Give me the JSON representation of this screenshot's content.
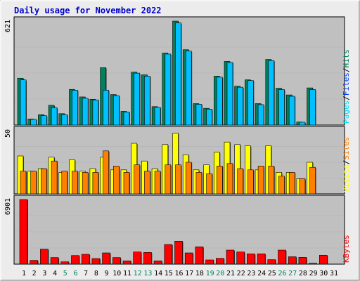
{
  "title": "Daily usage for November 2022",
  "colors": {
    "background": "#ececec",
    "plot_background": "#c0c0c0",
    "title": "#0000cc",
    "label": "#000000",
    "weekend_label": "#00805c",
    "hits": "#00805c",
    "files": "#00c0ff",
    "pages": "#00e0ff",
    "visits": "#ffff00",
    "sites": "#ff8000",
    "kbytes": "#ff0000"
  },
  "chart_data": [
    {
      "type": "bar",
      "title": "Daily usage for November 2022",
      "panel": "pages-files-hits",
      "ymax_label": "621",
      "ylim": [
        0,
        621
      ],
      "legend": [
        {
          "text": "Pages",
          "color": "#00e0ff"
        },
        {
          "text": "/",
          "color": "#000000"
        },
        {
          "text": "Files",
          "color": "#0040ff"
        },
        {
          "text": "/",
          "color": "#000000"
        },
        {
          "text": "Hits",
          "color": "#00805c"
        }
      ],
      "categories": [
        "1",
        "2",
        "3",
        "4",
        "5",
        "6",
        "7",
        "8",
        "9",
        "10",
        "11",
        "12",
        "13",
        "14",
        "15",
        "16",
        "17",
        "18",
        "19",
        "20",
        "21",
        "22",
        "23",
        "24",
        "25",
        "26",
        "27",
        "28",
        "29",
        "30",
        "31"
      ],
      "series": [
        {
          "name": "Hits",
          "values": [
            280,
            36,
            62,
            118,
            68,
            213,
            168,
            154,
            343,
            182,
            82,
            316,
            300,
            110,
            430,
            621,
            450,
            128,
            100,
            292,
            380,
            232,
            270,
            128,
            392,
            220,
            180,
            18,
            222,
            0,
            0
          ]
        },
        {
          "name": "Files",
          "values": [
            270,
            34,
            56,
            104,
            62,
            208,
            160,
            150,
            208,
            176,
            78,
            310,
            292,
            106,
            424,
            610,
            442,
            124,
            95,
            286,
            374,
            226,
            266,
            122,
            385,
            212,
            172,
            17,
            212,
            0,
            0
          ]
        },
        {
          "name": "Pages",
          "values": [
            270,
            34,
            56,
            104,
            62,
            208,
            160,
            150,
            208,
            176,
            78,
            310,
            292,
            106,
            424,
            610,
            442,
            124,
            95,
            286,
            374,
            226,
            266,
            122,
            385,
            212,
            172,
            17,
            212,
            0,
            0
          ]
        }
      ]
    },
    {
      "type": "bar",
      "panel": "visits-sites",
      "ymax_label": "50",
      "ylim": [
        0,
        50
      ],
      "legend": [
        {
          "text": "Visits",
          "color": "#ffff00"
        },
        {
          "text": "/",
          "color": "#000000"
        },
        {
          "text": "Sites",
          "color": "#ff8000"
        }
      ],
      "categories": [
        "1",
        "2",
        "3",
        "4",
        "5",
        "6",
        "7",
        "8",
        "9",
        "10",
        "11",
        "12",
        "13",
        "14",
        "15",
        "16",
        "17",
        "18",
        "19",
        "20",
        "21",
        "22",
        "23",
        "24",
        "25",
        "26",
        "27",
        "28",
        "29",
        "30",
        "31"
      ],
      "series": [
        {
          "name": "Visits",
          "values": [
            30,
            18,
            20,
            29,
            17,
            27,
            18,
            20,
            29,
            19,
            19,
            40,
            26,
            20,
            39,
            48,
            31,
            19,
            23,
            33,
            41,
            39,
            38,
            19,
            38,
            17,
            17,
            12,
            25,
            0,
            0
          ]
        },
        {
          "name": "Sites",
          "values": [
            18,
            18,
            20,
            26,
            18,
            18,
            17,
            17,
            34,
            22,
            17,
            23,
            18,
            18,
            23,
            23,
            25,
            17,
            16,
            22,
            24,
            20,
            19,
            22,
            22,
            14,
            17,
            12,
            21,
            0,
            0
          ]
        }
      ]
    },
    {
      "type": "bar",
      "panel": "kbytes",
      "ymax_label": "6901",
      "ylim": [
        0,
        6901
      ],
      "legend": [
        {
          "text": "KBytes",
          "color": "#ff0000"
        }
      ],
      "categories": [
        "1",
        "2",
        "3",
        "4",
        "5",
        "6",
        "7",
        "8",
        "9",
        "10",
        "11",
        "12",
        "13",
        "14",
        "15",
        "16",
        "17",
        "18",
        "19",
        "20",
        "21",
        "22",
        "23",
        "24",
        "25",
        "26",
        "27",
        "28",
        "29",
        "30",
        "31"
      ],
      "series": [
        {
          "name": "KBytes",
          "values": [
            6901,
            400,
            1600,
            700,
            250,
            920,
            1050,
            600,
            1200,
            700,
            350,
            1300,
            1250,
            350,
            2100,
            2450,
            1200,
            1850,
            450,
            620,
            1500,
            1300,
            1100,
            1100,
            480,
            1500,
            790,
            720,
            100,
            950,
            0
          ]
        }
      ]
    }
  ],
  "x_labels": [
    {
      "text": "1",
      "weekend": false
    },
    {
      "text": "2",
      "weekend": false
    },
    {
      "text": "3",
      "weekend": false
    },
    {
      "text": "4",
      "weekend": false
    },
    {
      "text": "5",
      "weekend": true
    },
    {
      "text": "6",
      "weekend": true
    },
    {
      "text": "7",
      "weekend": false
    },
    {
      "text": "8",
      "weekend": false
    },
    {
      "text": "9",
      "weekend": false
    },
    {
      "text": "10",
      "weekend": false
    },
    {
      "text": "11",
      "weekend": false
    },
    {
      "text": "12",
      "weekend": true
    },
    {
      "text": "13",
      "weekend": true
    },
    {
      "text": "14",
      "weekend": false
    },
    {
      "text": "15",
      "weekend": false
    },
    {
      "text": "16",
      "weekend": false
    },
    {
      "text": "17",
      "weekend": false
    },
    {
      "text": "18",
      "weekend": false
    },
    {
      "text": "19",
      "weekend": true
    },
    {
      "text": "20",
      "weekend": true
    },
    {
      "text": "21",
      "weekend": false
    },
    {
      "text": "22",
      "weekend": false
    },
    {
      "text": "23",
      "weekend": false
    },
    {
      "text": "24",
      "weekend": false
    },
    {
      "text": "25",
      "weekend": false
    },
    {
      "text": "26",
      "weekend": true
    },
    {
      "text": "27",
      "weekend": true
    },
    {
      "text": "28",
      "weekend": false
    },
    {
      "text": "29",
      "weekend": false
    },
    {
      "text": "30",
      "weekend": false
    },
    {
      "text": "31",
      "weekend": false
    }
  ]
}
